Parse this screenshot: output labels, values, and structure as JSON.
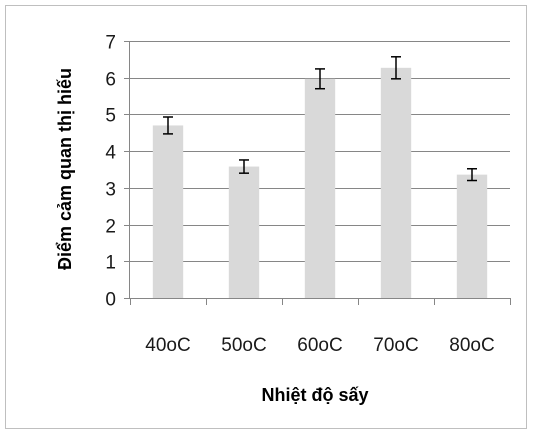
{
  "chart_data": {
    "type": "bar",
    "title": "",
    "xlabel": "Nhiệt độ sấy",
    "ylabel": "Điểm cảm quan thị hiếu",
    "categories": [
      "40oC",
      "50oC",
      "60oC",
      "70oC",
      "80oC"
    ],
    "values": [
      4.7,
      3.58,
      5.97,
      6.27,
      3.36
    ],
    "error": [
      0.23,
      0.18,
      0.27,
      0.3,
      0.16
    ],
    "ylim": [
      0,
      7
    ],
    "yticks": [
      0,
      1,
      2,
      3,
      4,
      5,
      6,
      7
    ],
    "grid": true,
    "legend": "none",
    "colors": {
      "bar": "#d9d9d9",
      "gridline": "#868686",
      "axis": "#868686",
      "error_bar": "#000000"
    }
  }
}
